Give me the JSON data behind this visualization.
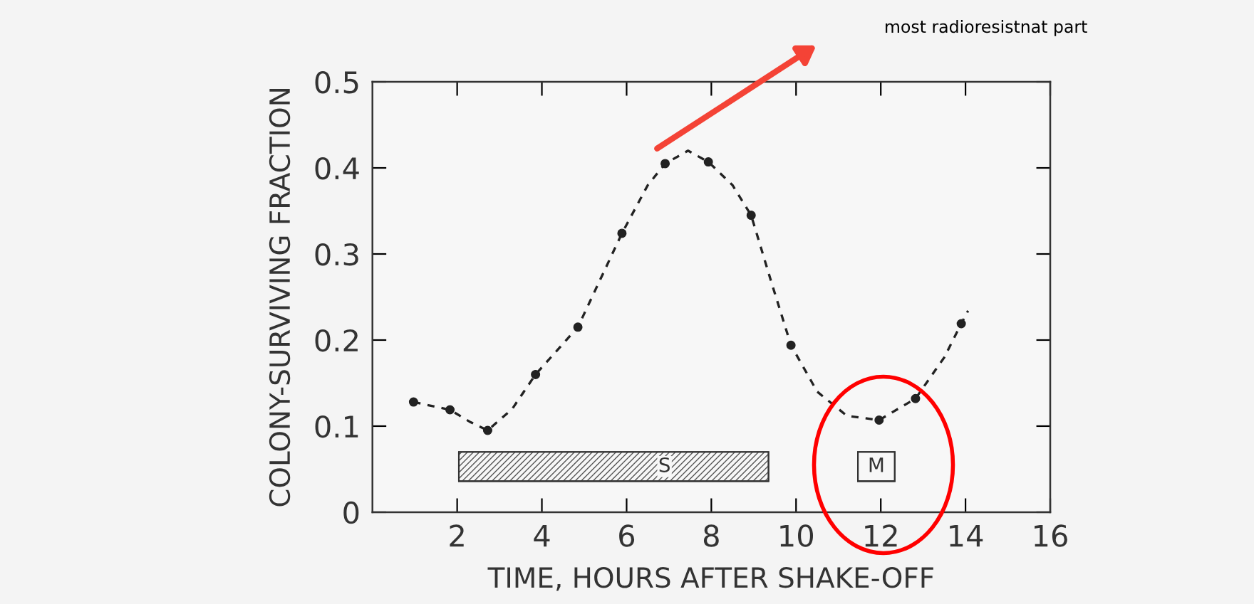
{
  "chart_data": {
    "type": "line",
    "xlabel": "TIME, HOURS AFTER SHAKE-OFF",
    "ylabel": "COLONY-SURVIVING FRACTION",
    "xlim": [
      0,
      16
    ],
    "xticks": [
      2,
      4,
      6,
      8,
      10,
      12,
      14,
      16
    ],
    "ylim": [
      0,
      0.5
    ],
    "yticks": [
      0,
      0.1,
      0.2,
      0.3,
      0.4,
      0.5
    ],
    "grid": false,
    "legend": false,
    "series": [
      {
        "type": "line",
        "color": "#222222",
        "line_style": "dashed",
        "marker": "none",
        "x": [
          0.97,
          1.83,
          2.3,
          2.72,
          3.3,
          3.85,
          4.85,
          5.89,
          6.5,
          6.91,
          7.45,
          7.93,
          8.5,
          8.94,
          9.4,
          9.88,
          10.5,
          11.2,
          11.96,
          12.82,
          13.5,
          13.9,
          14.06
        ],
        "values": [
          0.128,
          0.119,
          0.105,
          0.095,
          0.12,
          0.16,
          0.215,
          0.324,
          0.38,
          0.405,
          0.42,
          0.407,
          0.38,
          0.345,
          0.27,
          0.194,
          0.14,
          0.112,
          0.107,
          0.132,
          0.18,
          0.219,
          0.234
        ]
      },
      {
        "type": "scatter",
        "color": "#222222",
        "marker": "circle",
        "x": [
          0.97,
          1.83,
          2.72,
          3.85,
          4.85,
          5.89,
          6.91,
          7.93,
          8.94,
          9.88,
          11.96,
          12.82,
          13.9
        ],
        "values": [
          0.128,
          0.119,
          0.095,
          0.16,
          0.215,
          0.324,
          0.405,
          0.407,
          0.345,
          0.194,
          0.107,
          0.132,
          0.219
        ]
      }
    ],
    "bands": [
      {
        "axis": "x",
        "from": 2.04,
        "to": 9.35,
        "label": "S",
        "color": "#555555"
      },
      {
        "axis": "x",
        "from": 11.46,
        "to": 12.33,
        "label": "M",
        "color": "#ffffff"
      }
    ],
    "annotations": [
      "most radioresistnat part"
    ]
  }
}
